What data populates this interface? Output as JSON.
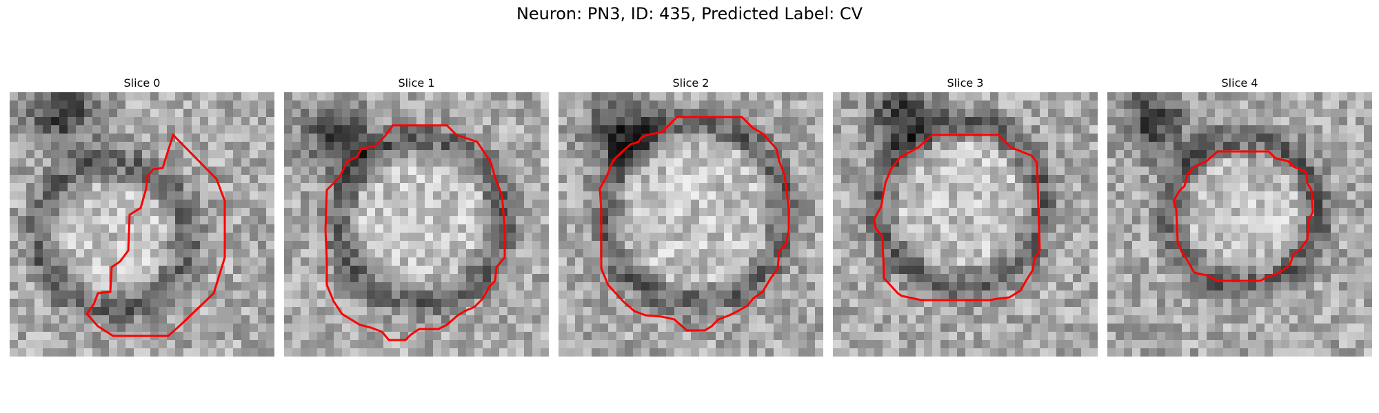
{
  "figure": {
    "title": "Neuron: PN3, ID: 435, Predicted Label: CV"
  },
  "panels": [
    {
      "title": "Slice 0"
    },
    {
      "title": "Slice 1"
    },
    {
      "title": "Slice 2"
    },
    {
      "title": "Slice 3"
    },
    {
      "title": "Slice 4"
    }
  ],
  "colors": {
    "contour": "#ff0000",
    "colormap": "grayscale"
  }
}
